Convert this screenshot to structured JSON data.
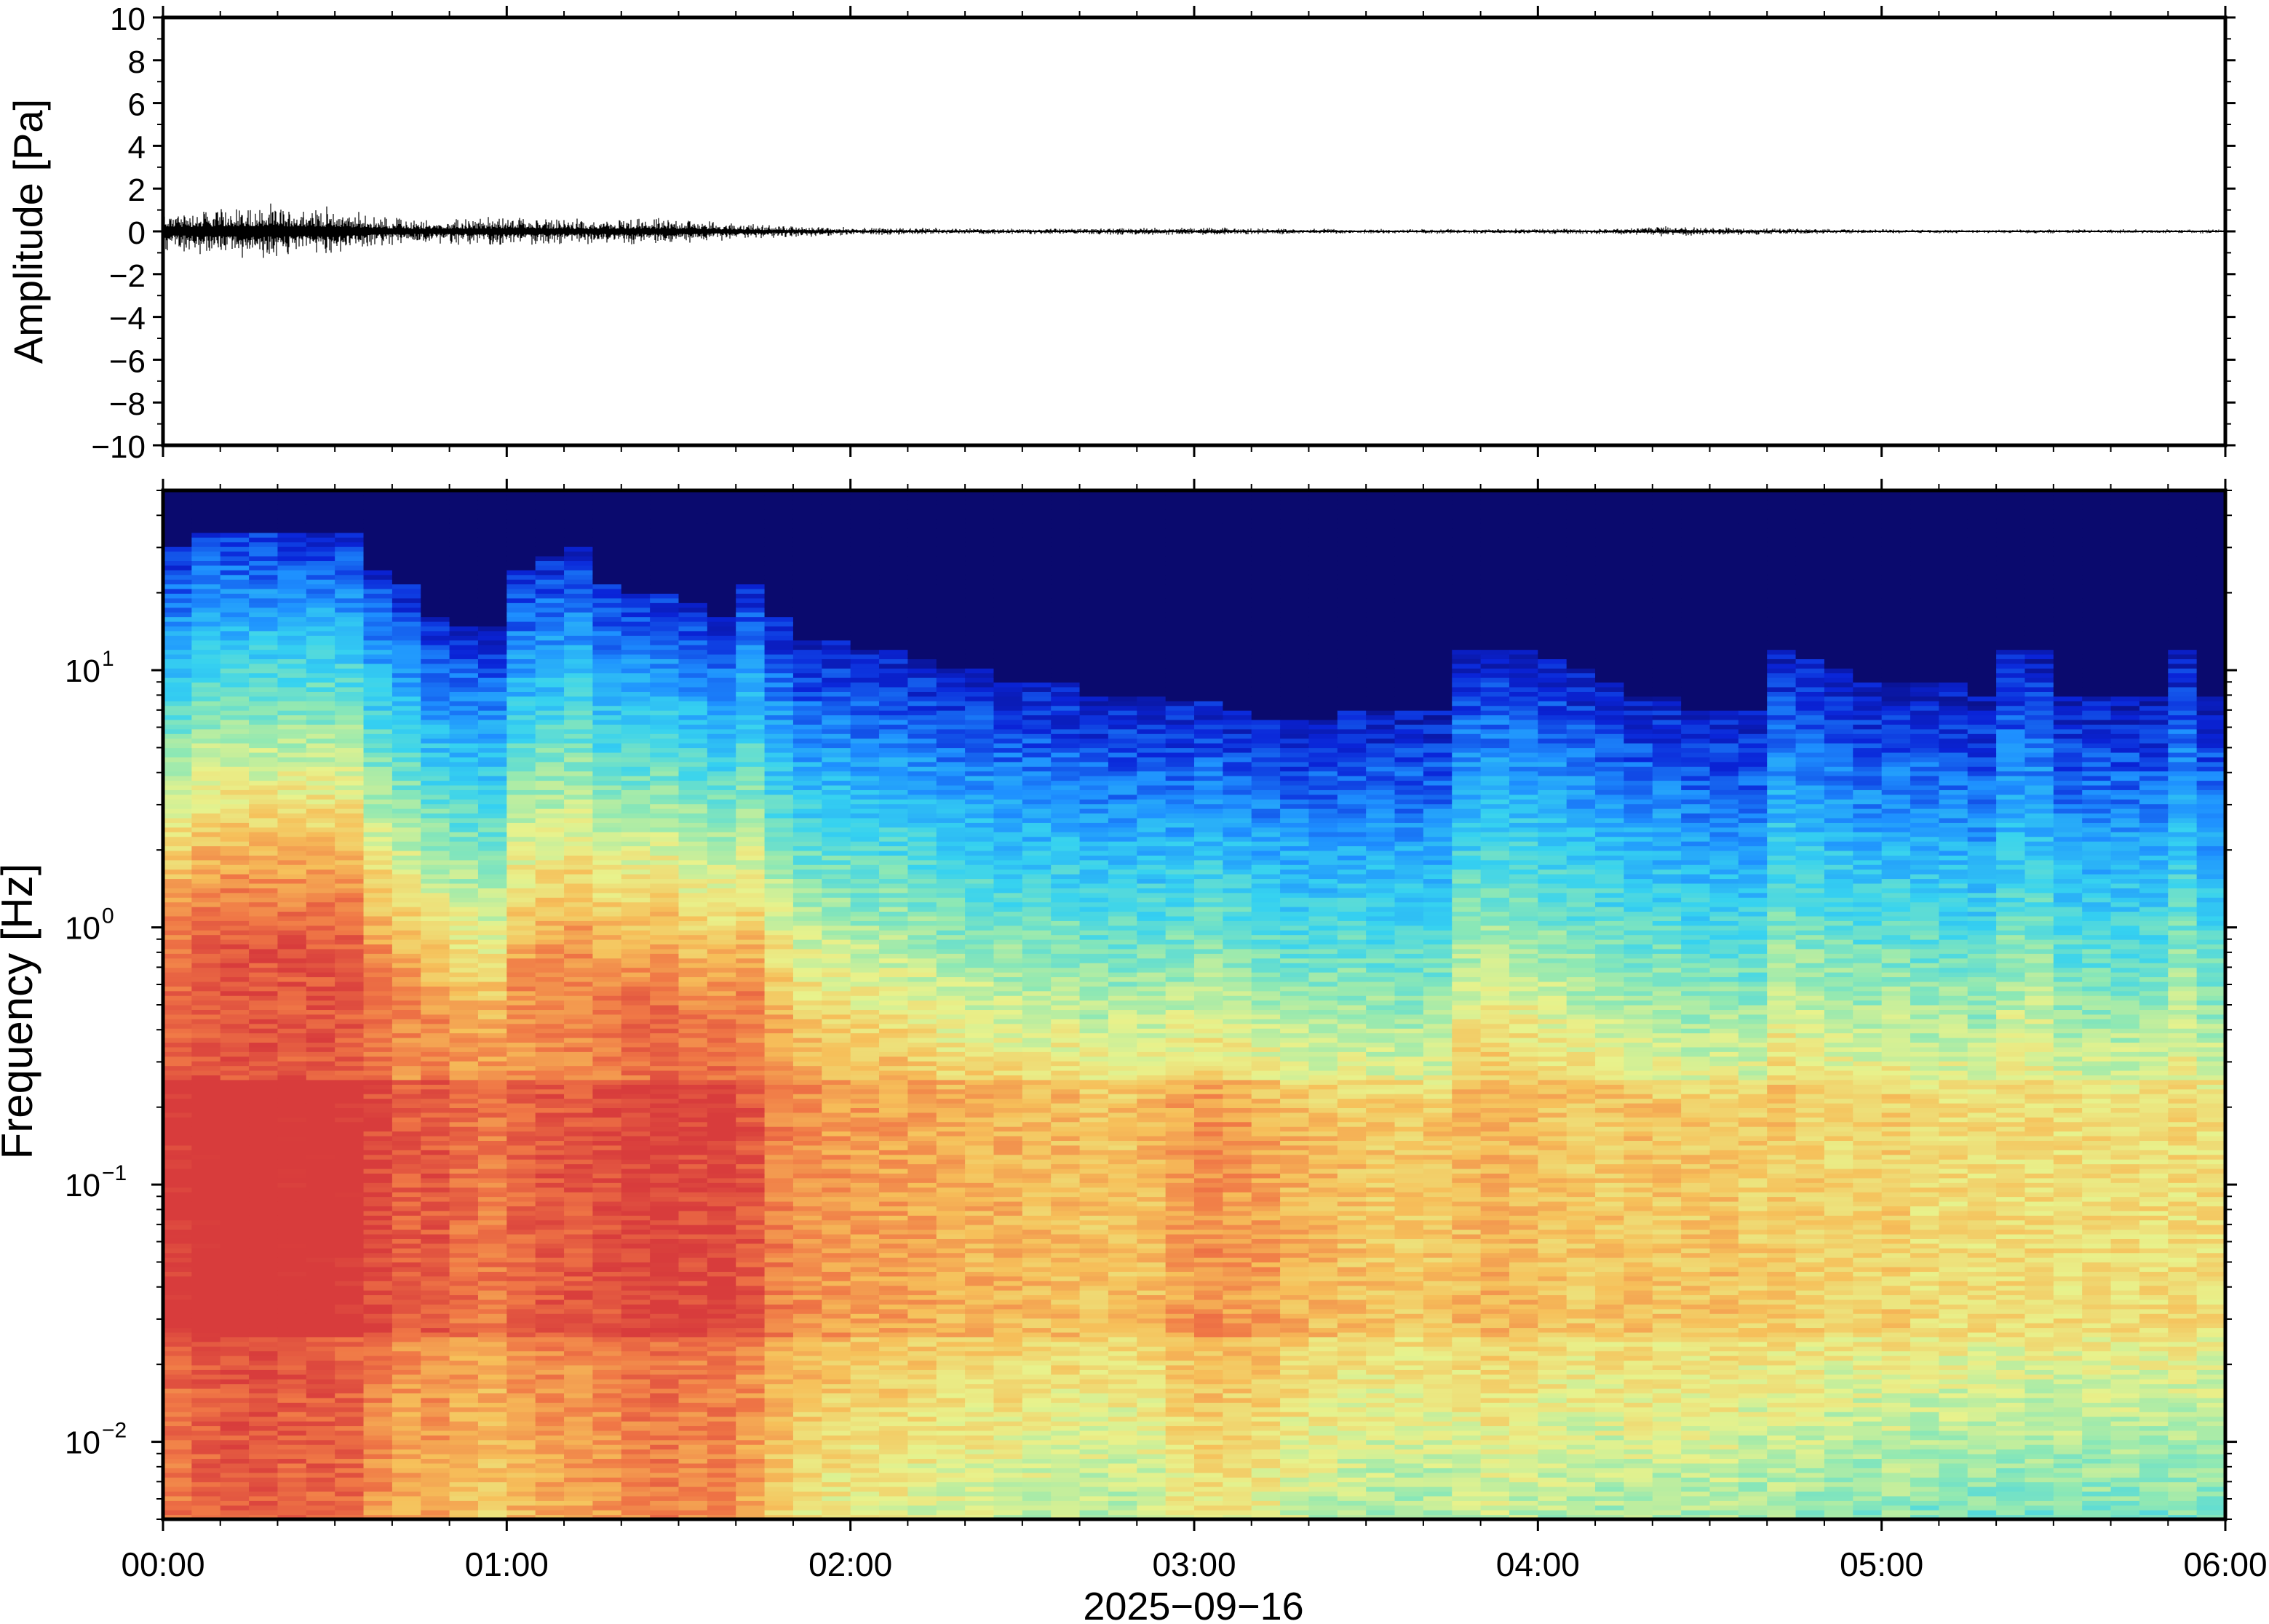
{
  "chart_data": [
    {
      "type": "line",
      "ylabel": "Amplitude [Pa]",
      "ylim": [
        -10,
        10
      ],
      "yticks": [
        "10",
        "8",
        "6",
        "4",
        "2",
        "0",
        "−2",
        "−4",
        "−6",
        "−8",
        "−10"
      ],
      "ytick_values": [
        10,
        8,
        6,
        4,
        2,
        0,
        -2,
        -4,
        -6,
        -8,
        -10
      ],
      "series": [
        {
          "color": "#000000",
          "envelope_time_h": [
            0.0,
            0.25,
            0.5,
            0.6,
            0.75,
            1.0,
            1.25,
            1.5,
            1.6,
            1.75,
            2.0,
            2.5,
            2.9,
            3.5,
            4.2,
            4.4,
            4.6,
            5.0,
            6.0
          ],
          "envelope_peak_pa": [
            0.6,
            0.8,
            0.7,
            0.5,
            0.35,
            0.45,
            0.35,
            0.4,
            0.3,
            0.2,
            0.12,
            0.08,
            0.12,
            0.07,
            0.08,
            0.15,
            0.1,
            0.06,
            0.06
          ]
        }
      ],
      "grid": false
    },
    {
      "type": "heatmap",
      "ylabel": "Frequency [Hz]",
      "xlabel": "2025−09−16",
      "yscale": "log",
      "ylim_hz": [
        0.005,
        50
      ],
      "yticks": [
        {
          "value": 10,
          "base": "10",
          "exp": "1"
        },
        {
          "value": 1,
          "base": "10",
          "exp": "0"
        },
        {
          "value": 0.1,
          "base": "10",
          "exp": "−1"
        },
        {
          "value": 0.01,
          "base": "10",
          "exp": "−2"
        }
      ],
      "xticks": [
        "00:00",
        "01:00",
        "02:00",
        "03:00",
        "04:00",
        "05:00",
        "06:00"
      ],
      "xtick_hours": [
        0,
        1,
        2,
        3,
        4,
        5,
        6
      ],
      "colormap": [
        "#0a0a6e",
        "#0a24d8",
        "#1e90ff",
        "#36d2f0",
        "#8ee8b4",
        "#e8f28c",
        "#f6c05a",
        "#f07846",
        "#d83c3c"
      ],
      "column_count": 72,
      "upper_edge_freq_hz": [
        30,
        35,
        35,
        35,
        35,
        35,
        35,
        25,
        22,
        16,
        15,
        15,
        25,
        28,
        30,
        22,
        20,
        20,
        18,
        16,
        22,
        16,
        13,
        13,
        12,
        12,
        11,
        10,
        10,
        9,
        9,
        9,
        8,
        8,
        8,
        7.5,
        7.5,
        7,
        6.5,
        6.5,
        6.5,
        7,
        7,
        7,
        7,
        12,
        12,
        12,
        11,
        10,
        9,
        8,
        8,
        7,
        7,
        7,
        12,
        11,
        10,
        9,
        9,
        9,
        9,
        8,
        12,
        12,
        8,
        8,
        8,
        8,
        12,
        8
      ],
      "column_level": [
        0.85,
        0.9,
        0.92,
        0.92,
        0.9,
        0.9,
        0.88,
        0.78,
        0.7,
        0.72,
        0.65,
        0.62,
        0.68,
        0.72,
        0.72,
        0.75,
        0.8,
        0.82,
        0.78,
        0.8,
        0.72,
        0.6,
        0.55,
        0.52,
        0.5,
        0.5,
        0.48,
        0.45,
        0.45,
        0.45,
        0.42,
        0.42,
        0.4,
        0.4,
        0.42,
        0.5,
        0.55,
        0.52,
        0.5,
        0.45,
        0.42,
        0.4,
        0.38,
        0.38,
        0.38,
        0.42,
        0.45,
        0.42,
        0.4,
        0.38,
        0.38,
        0.4,
        0.38,
        0.38,
        0.4,
        0.36,
        0.38,
        0.35,
        0.32,
        0.32,
        0.35,
        0.3,
        0.3,
        0.3,
        0.3,
        0.3,
        0.3,
        0.3,
        0.3,
        0.3,
        0.3,
        0.3
      ]
    }
  ]
}
